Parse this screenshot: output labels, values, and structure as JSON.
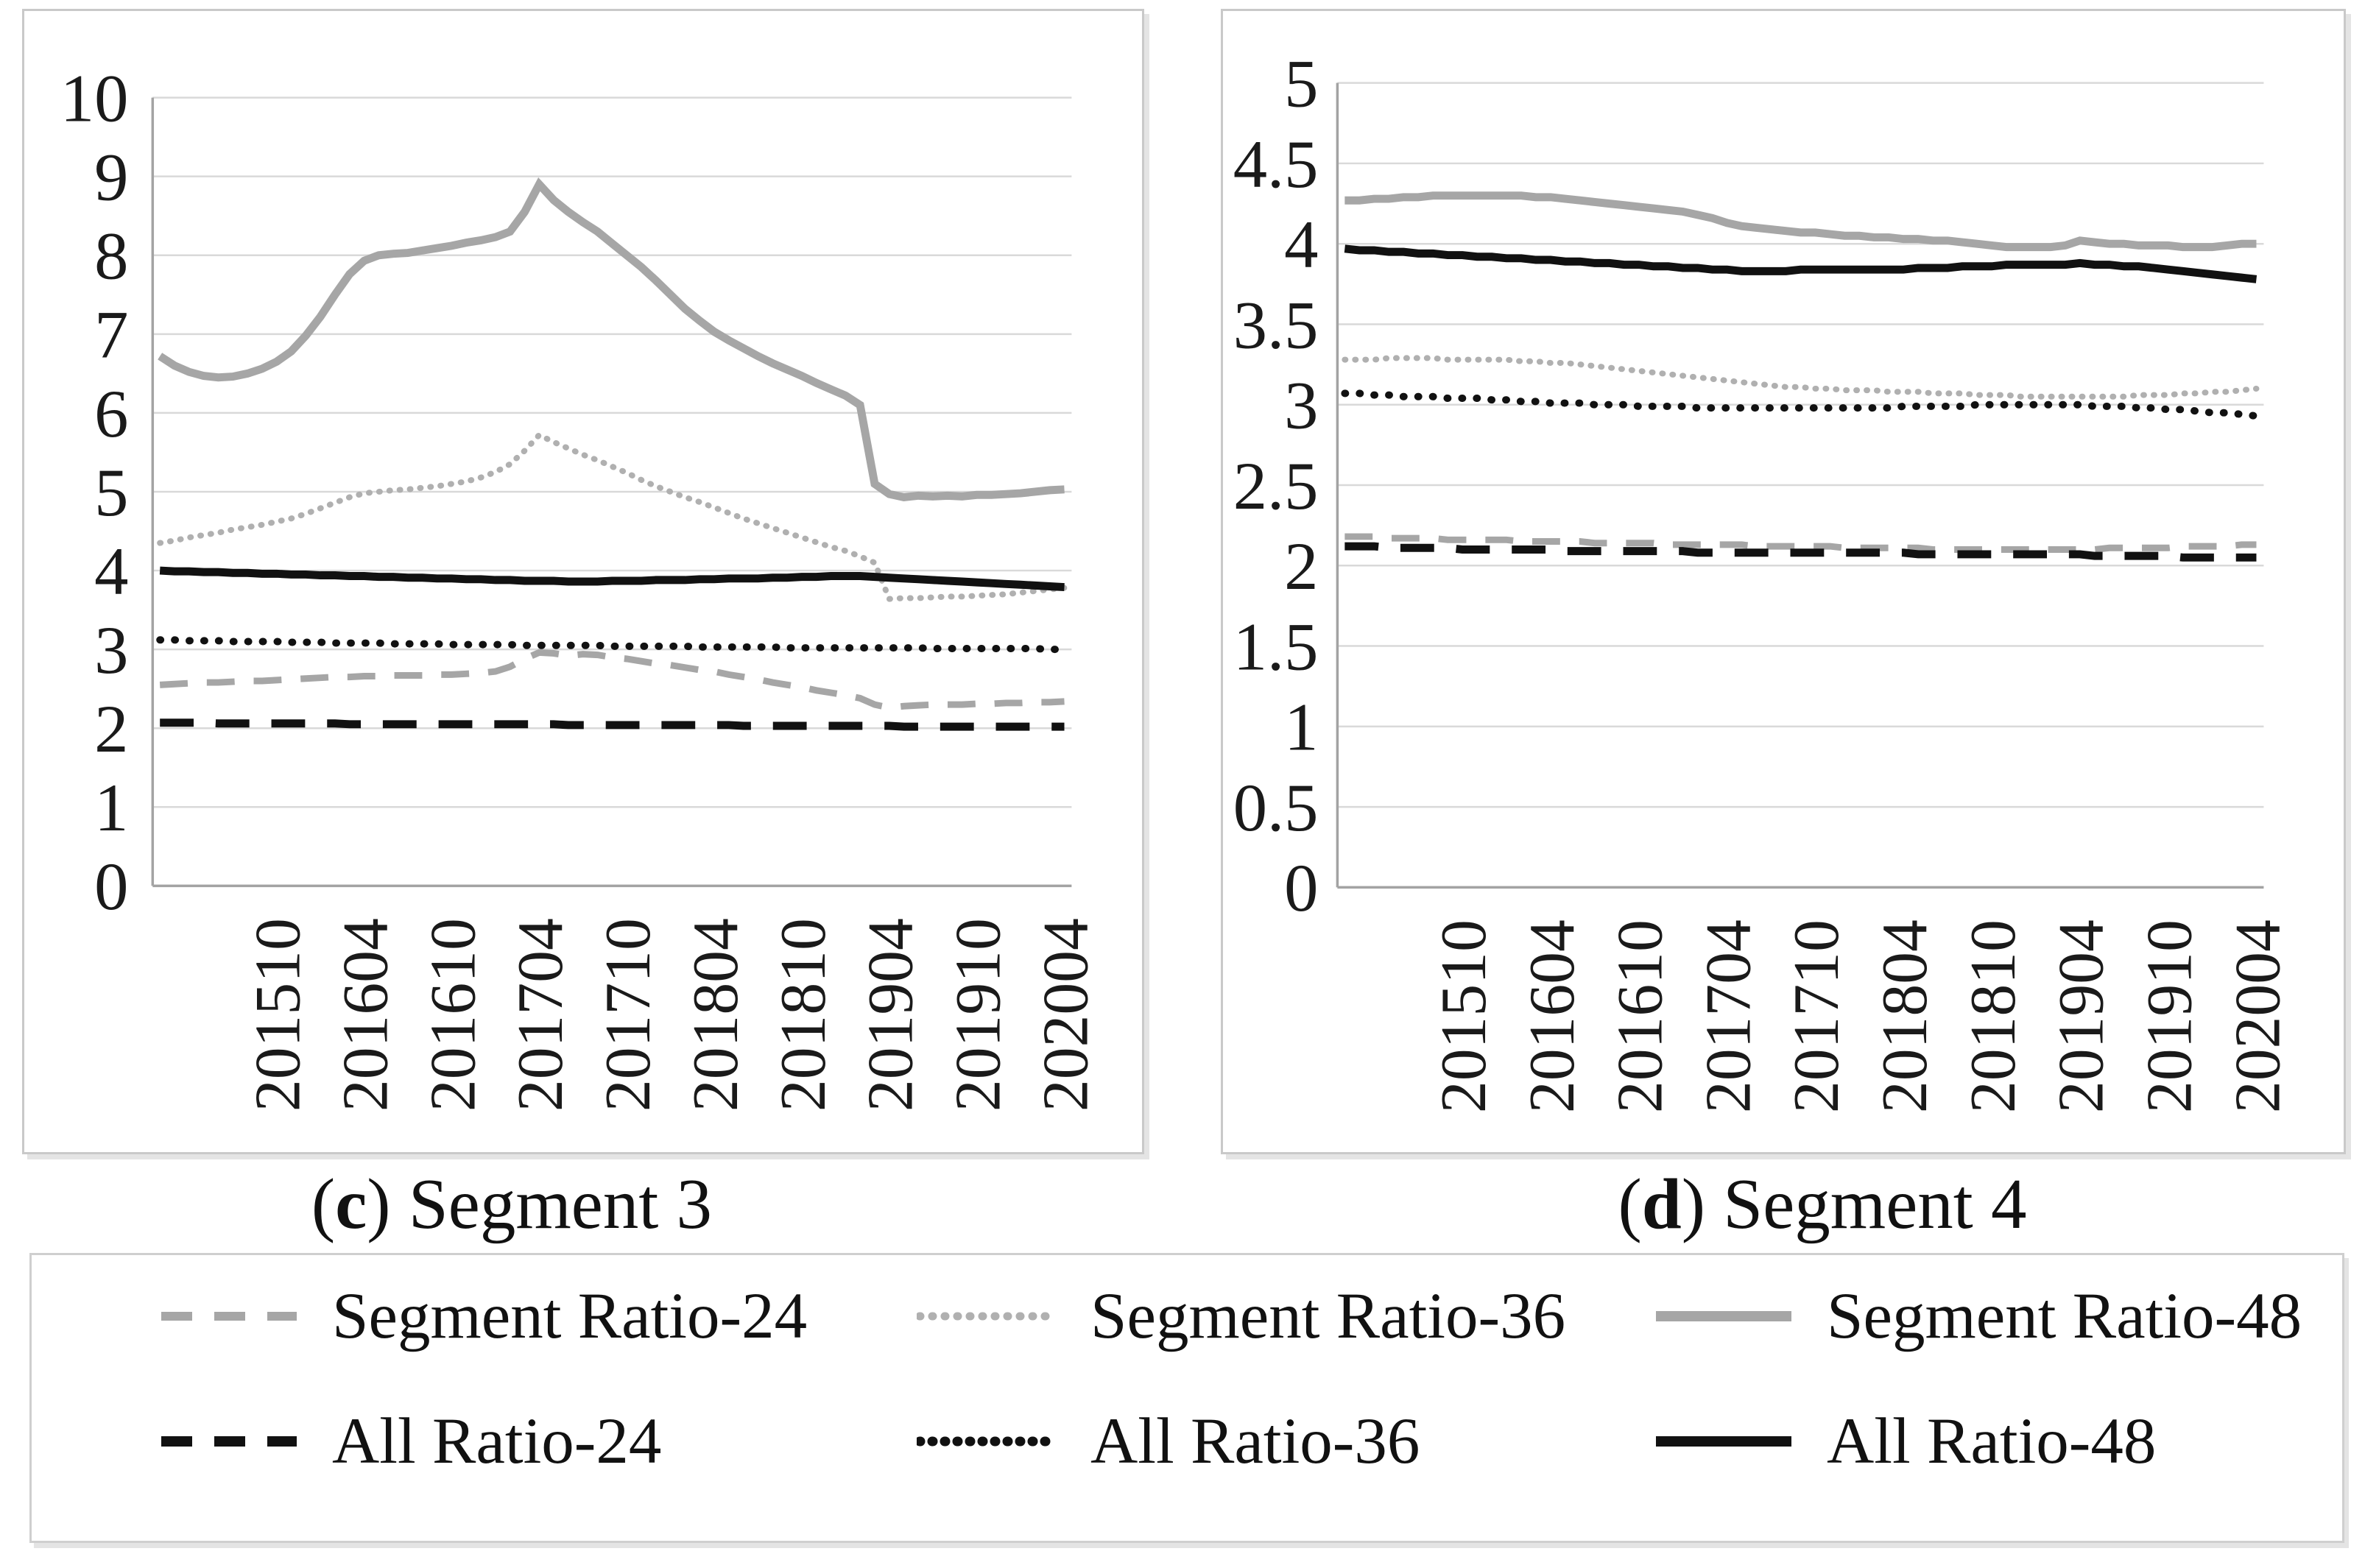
{
  "figure": {
    "panels": [
      {
        "id": "c",
        "caption_open": "(",
        "caption_letter": "c",
        "caption_rest": ") Segment 3"
      },
      {
        "id": "d",
        "caption_open": "(",
        "caption_letter": "d",
        "caption_rest": ") Segment 4"
      }
    ]
  },
  "legend": {
    "position": "bottom-shared",
    "items": [
      {
        "id": "seg24",
        "label": "Segment Ratio-24"
      },
      {
        "id": "seg36",
        "label": "Segment Ratio-36"
      },
      {
        "id": "seg48",
        "label": "Segment Ratio-48"
      },
      {
        "id": "all24",
        "label": "All Ratio-24"
      },
      {
        "id": "all36",
        "label": "All Ratio-36"
      },
      {
        "id": "all48",
        "label": "All Ratio-48"
      }
    ]
  },
  "colors": {
    "segment_gray": "#a6a6a6",
    "segment_dotted_gray": "#b0b0b0",
    "black": "#111111",
    "gridline": "#d9d9d9",
    "axis_line": "#a3a3a3",
    "text": "#1a1a1a",
    "panel_border": "#c9c9c9"
  },
  "chart_data": [
    {
      "type": "line",
      "panel": "c",
      "title": "Segment 3",
      "xlabel": "",
      "ylabel": "",
      "ylim": [
        0,
        10
      ],
      "ytick_step": 1,
      "ytick_labels": [
        "0",
        "1",
        "2",
        "3",
        "4",
        "5",
        "6",
        "7",
        "8",
        "9",
        "10"
      ],
      "grid": true,
      "x_months": [
        "201502",
        "201503",
        "201504",
        "201505",
        "201506",
        "201507",
        "201508",
        "201509",
        "201510",
        "201511",
        "201512",
        "201601",
        "201602",
        "201603",
        "201604",
        "201605",
        "201606",
        "201607",
        "201608",
        "201609",
        "201610",
        "201611",
        "201612",
        "201701",
        "201702",
        "201703",
        "201704",
        "201705",
        "201706",
        "201707",
        "201708",
        "201709",
        "201710",
        "201711",
        "201712",
        "201801",
        "201802",
        "201803",
        "201804",
        "201805",
        "201806",
        "201807",
        "201808",
        "201809",
        "201810",
        "201811",
        "201812",
        "201901",
        "201902",
        "201903",
        "201904",
        "201905",
        "201906",
        "201907",
        "201908",
        "201909",
        "201910",
        "201911",
        "201912",
        "202001",
        "202002",
        "202003",
        "202004"
      ],
      "x_tick_indices": [
        8,
        14,
        20,
        26,
        32,
        38,
        44,
        50,
        56,
        62
      ],
      "x_tick_labels": [
        "201510",
        "201604",
        "201610",
        "201704",
        "201710",
        "201804",
        "201810",
        "201904",
        "201910",
        "202004"
      ],
      "series": [
        {
          "id": "seg24",
          "name": "Segment Ratio-24",
          "values": [
            2.55,
            2.56,
            2.57,
            2.58,
            2.58,
            2.59,
            2.6,
            2.6,
            2.61,
            2.62,
            2.63,
            2.64,
            2.65,
            2.65,
            2.66,
            2.66,
            2.67,
            2.67,
            2.67,
            2.68,
            2.68,
            2.69,
            2.7,
            2.72,
            2.78,
            2.88,
            2.96,
            2.95,
            2.92,
            2.94,
            2.93,
            2.9,
            2.88,
            2.85,
            2.82,
            2.8,
            2.77,
            2.74,
            2.72,
            2.68,
            2.65,
            2.62,
            2.58,
            2.55,
            2.52,
            2.48,
            2.45,
            2.42,
            2.38,
            2.3,
            2.26,
            2.28,
            2.29,
            2.3,
            2.3,
            2.3,
            2.31,
            2.31,
            2.32,
            2.32,
            2.33,
            2.33,
            2.34
          ]
        },
        {
          "id": "seg36",
          "name": "Segment Ratio-36",
          "values": [
            4.35,
            4.38,
            4.42,
            4.45,
            4.48,
            4.52,
            4.55,
            4.58,
            4.62,
            4.66,
            4.72,
            4.79,
            4.86,
            4.93,
            4.98,
            5.0,
            5.02,
            5.03,
            5.05,
            5.07,
            5.1,
            5.13,
            5.18,
            5.25,
            5.35,
            5.52,
            5.72,
            5.63,
            5.55,
            5.47,
            5.4,
            5.32,
            5.24,
            5.15,
            5.07,
            5.0,
            4.93,
            4.87,
            4.8,
            4.73,
            4.66,
            4.6,
            4.54,
            4.48,
            4.42,
            4.36,
            4.3,
            4.25,
            4.18,
            4.1,
            3.64,
            3.65,
            3.65,
            3.66,
            3.67,
            3.67,
            3.68,
            3.69,
            3.7,
            3.72,
            3.74,
            3.76,
            3.78
          ]
        },
        {
          "id": "seg48",
          "name": "Segment Ratio-48",
          "values": [
            6.72,
            6.6,
            6.52,
            6.47,
            6.45,
            6.46,
            6.5,
            6.56,
            6.65,
            6.78,
            6.98,
            7.22,
            7.5,
            7.76,
            7.93,
            8.0,
            8.02,
            8.03,
            8.06,
            8.09,
            8.12,
            8.16,
            8.19,
            8.23,
            8.3,
            8.55,
            8.9,
            8.7,
            8.55,
            8.42,
            8.3,
            8.15,
            8.0,
            7.85,
            7.68,
            7.5,
            7.32,
            7.17,
            7.03,
            6.92,
            6.82,
            6.72,
            6.63,
            6.55,
            6.47,
            6.38,
            6.3,
            6.22,
            6.1,
            5.1,
            4.97,
            4.93,
            4.95,
            4.94,
            4.95,
            4.94,
            4.96,
            4.96,
            4.97,
            4.98,
            5.0,
            5.02,
            5.03
          ]
        },
        {
          "id": "all24",
          "name": "All Ratio-24",
          "values": [
            2.07,
            2.07,
            2.07,
            2.07,
            2.06,
            2.06,
            2.06,
            2.06,
            2.06,
            2.06,
            2.06,
            2.06,
            2.06,
            2.05,
            2.05,
            2.05,
            2.05,
            2.05,
            2.05,
            2.05,
            2.05,
            2.05,
            2.05,
            2.05,
            2.05,
            2.05,
            2.05,
            2.05,
            2.04,
            2.04,
            2.04,
            2.04,
            2.04,
            2.04,
            2.04,
            2.04,
            2.04,
            2.04,
            2.04,
            2.04,
            2.03,
            2.03,
            2.03,
            2.03,
            2.03,
            2.03,
            2.03,
            2.03,
            2.03,
            2.03,
            2.03,
            2.02,
            2.02,
            2.02,
            2.02,
            2.02,
            2.02,
            2.02,
            2.02,
            2.02,
            2.02,
            2.02,
            2.02
          ]
        },
        {
          "id": "all36",
          "name": "All Ratio-36",
          "values": [
            3.12,
            3.12,
            3.11,
            3.11,
            3.11,
            3.1,
            3.1,
            3.1,
            3.1,
            3.09,
            3.09,
            3.09,
            3.08,
            3.08,
            3.08,
            3.08,
            3.07,
            3.07,
            3.07,
            3.07,
            3.06,
            3.06,
            3.06,
            3.06,
            3.06,
            3.05,
            3.05,
            3.05,
            3.05,
            3.05,
            3.05,
            3.04,
            3.04,
            3.04,
            3.04,
            3.04,
            3.04,
            3.03,
            3.03,
            3.03,
            3.03,
            3.03,
            3.03,
            3.02,
            3.02,
            3.02,
            3.02,
            3.02,
            3.02,
            3.02,
            3.02,
            3.02,
            3.02,
            3.01,
            3.01,
            3.01,
            3.01,
            3.01,
            3.01,
            3.01,
            3.01,
            3.0,
            3.0
          ]
        },
        {
          "id": "all48",
          "name": "All Ratio-48",
          "values": [
            4.0,
            3.99,
            3.99,
            3.98,
            3.98,
            3.97,
            3.97,
            3.96,
            3.96,
            3.95,
            3.95,
            3.94,
            3.94,
            3.93,
            3.93,
            3.92,
            3.92,
            3.91,
            3.91,
            3.9,
            3.9,
            3.89,
            3.89,
            3.88,
            3.88,
            3.87,
            3.87,
            3.87,
            3.86,
            3.86,
            3.86,
            3.87,
            3.87,
            3.87,
            3.88,
            3.88,
            3.88,
            3.89,
            3.89,
            3.9,
            3.9,
            3.9,
            3.91,
            3.91,
            3.92,
            3.92,
            3.93,
            3.93,
            3.93,
            3.92,
            3.91,
            3.9,
            3.89,
            3.88,
            3.87,
            3.86,
            3.85,
            3.84,
            3.83,
            3.82,
            3.81,
            3.8,
            3.79
          ]
        }
      ]
    },
    {
      "type": "line",
      "panel": "d",
      "title": "Segment 4",
      "xlabel": "",
      "ylabel": "",
      "ylim": [
        0,
        5
      ],
      "ytick_step": 0.5,
      "ytick_labels": [
        "0",
        "0.5",
        "1",
        "1.5",
        "2",
        "2.5",
        "3",
        "3.5",
        "4",
        "4.5",
        "5"
      ],
      "grid": true,
      "x_months": [
        "201502",
        "201503",
        "201504",
        "201505",
        "201506",
        "201507",
        "201508",
        "201509",
        "201510",
        "201511",
        "201512",
        "201601",
        "201602",
        "201603",
        "201604",
        "201605",
        "201606",
        "201607",
        "201608",
        "201609",
        "201610",
        "201611",
        "201612",
        "201701",
        "201702",
        "201703",
        "201704",
        "201705",
        "201706",
        "201707",
        "201708",
        "201709",
        "201710",
        "201711",
        "201712",
        "201801",
        "201802",
        "201803",
        "201804",
        "201805",
        "201806",
        "201807",
        "201808",
        "201809",
        "201810",
        "201811",
        "201812",
        "201901",
        "201902",
        "201903",
        "201904",
        "201905",
        "201906",
        "201907",
        "201908",
        "201909",
        "201910",
        "201911",
        "201912",
        "202001",
        "202002",
        "202003",
        "202004"
      ],
      "x_tick_indices": [
        8,
        14,
        20,
        26,
        32,
        38,
        44,
        50,
        56,
        62
      ],
      "x_tick_labels": [
        "201510",
        "201604",
        "201610",
        "201704",
        "201710",
        "201804",
        "201810",
        "201904",
        "201910",
        "202004"
      ],
      "series": [
        {
          "id": "seg24",
          "name": "Segment Ratio-24",
          "values": [
            2.18,
            2.18,
            2.18,
            2.17,
            2.17,
            2.17,
            2.17,
            2.16,
            2.16,
            2.16,
            2.16,
            2.16,
            2.15,
            2.15,
            2.15,
            2.15,
            2.15,
            2.14,
            2.14,
            2.14,
            2.14,
            2.14,
            2.13,
            2.13,
            2.13,
            2.13,
            2.13,
            2.13,
            2.12,
            2.12,
            2.12,
            2.12,
            2.12,
            2.12,
            2.11,
            2.11,
            2.11,
            2.11,
            2.11,
            2.11,
            2.1,
            2.1,
            2.1,
            2.1,
            2.1,
            2.1,
            2.1,
            2.1,
            2.1,
            2.1,
            2.1,
            2.1,
            2.11,
            2.11,
            2.11,
            2.11,
            2.11,
            2.12,
            2.12,
            2.12,
            2.12,
            2.13,
            2.13
          ]
        },
        {
          "id": "seg36",
          "name": "Segment Ratio-36",
          "values": [
            3.28,
            3.28,
            3.28,
            3.29,
            3.29,
            3.29,
            3.29,
            3.28,
            3.28,
            3.28,
            3.28,
            3.28,
            3.27,
            3.27,
            3.26,
            3.26,
            3.25,
            3.24,
            3.23,
            3.22,
            3.21,
            3.2,
            3.19,
            3.18,
            3.17,
            3.16,
            3.15,
            3.14,
            3.13,
            3.12,
            3.11,
            3.11,
            3.1,
            3.1,
            3.09,
            3.09,
            3.09,
            3.08,
            3.08,
            3.08,
            3.07,
            3.07,
            3.07,
            3.06,
            3.06,
            3.06,
            3.05,
            3.05,
            3.05,
            3.05,
            3.05,
            3.05,
            3.05,
            3.05,
            3.06,
            3.06,
            3.06,
            3.07,
            3.07,
            3.08,
            3.08,
            3.09,
            3.1
          ]
        },
        {
          "id": "seg48",
          "name": "Segment Ratio-48",
          "values": [
            4.27,
            4.27,
            4.28,
            4.28,
            4.29,
            4.29,
            4.3,
            4.3,
            4.3,
            4.3,
            4.3,
            4.3,
            4.3,
            4.29,
            4.29,
            4.28,
            4.27,
            4.26,
            4.25,
            4.24,
            4.23,
            4.22,
            4.21,
            4.2,
            4.18,
            4.16,
            4.13,
            4.11,
            4.1,
            4.09,
            4.08,
            4.07,
            4.07,
            4.06,
            4.05,
            4.05,
            4.04,
            4.04,
            4.03,
            4.03,
            4.02,
            4.02,
            4.01,
            4.0,
            3.99,
            3.98,
            3.98,
            3.98,
            3.98,
            3.99,
            4.02,
            4.01,
            4.0,
            4.0,
            3.99,
            3.99,
            3.99,
            3.98,
            3.98,
            3.98,
            3.99,
            4.0,
            4.0
          ]
        },
        {
          "id": "all24",
          "name": "All Ratio-24",
          "values": [
            2.12,
            2.12,
            2.12,
            2.11,
            2.11,
            2.11,
            2.11,
            2.11,
            2.1,
            2.1,
            2.1,
            2.1,
            2.1,
            2.1,
            2.1,
            2.09,
            2.09,
            2.09,
            2.09,
            2.09,
            2.09,
            2.09,
            2.09,
            2.09,
            2.08,
            2.08,
            2.08,
            2.08,
            2.08,
            2.08,
            2.08,
            2.08,
            2.08,
            2.08,
            2.08,
            2.08,
            2.08,
            2.08,
            2.08,
            2.07,
            2.07,
            2.07,
            2.07,
            2.07,
            2.07,
            2.07,
            2.07,
            2.07,
            2.07,
            2.07,
            2.07,
            2.06,
            2.06,
            2.06,
            2.06,
            2.06,
            2.06,
            2.05,
            2.05,
            2.05,
            2.05,
            2.05,
            2.05
          ]
        },
        {
          "id": "all36",
          "name": "All Ratio-36",
          "values": [
            3.07,
            3.07,
            3.06,
            3.06,
            3.05,
            3.05,
            3.05,
            3.04,
            3.04,
            3.04,
            3.03,
            3.03,
            3.02,
            3.02,
            3.01,
            3.01,
            3.01,
            3.0,
            3.0,
            3.0,
            2.99,
            2.99,
            2.99,
            2.99,
            2.98,
            2.98,
            2.98,
            2.98,
            2.98,
            2.98,
            2.98,
            2.98,
            2.98,
            2.98,
            2.98,
            2.98,
            2.98,
            2.98,
            2.99,
            2.99,
            2.99,
            2.99,
            2.99,
            3.0,
            3.0,
            3.0,
            3.0,
            3.0,
            3.0,
            3.0,
            3.0,
            2.99,
            2.99,
            2.99,
            2.98,
            2.98,
            2.97,
            2.97,
            2.96,
            2.95,
            2.95,
            2.94,
            2.93
          ]
        },
        {
          "id": "all48",
          "name": "All Ratio-48",
          "values": [
            3.97,
            3.96,
            3.96,
            3.95,
            3.95,
            3.94,
            3.94,
            3.93,
            3.93,
            3.92,
            3.92,
            3.91,
            3.91,
            3.9,
            3.9,
            3.89,
            3.89,
            3.88,
            3.88,
            3.87,
            3.87,
            3.86,
            3.86,
            3.85,
            3.85,
            3.84,
            3.84,
            3.83,
            3.83,
            3.83,
            3.83,
            3.84,
            3.84,
            3.84,
            3.84,
            3.84,
            3.84,
            3.84,
            3.84,
            3.85,
            3.85,
            3.85,
            3.86,
            3.86,
            3.86,
            3.87,
            3.87,
            3.87,
            3.87,
            3.87,
            3.88,
            3.87,
            3.87,
            3.86,
            3.86,
            3.85,
            3.84,
            3.83,
            3.82,
            3.81,
            3.8,
            3.79,
            3.78
          ]
        }
      ]
    }
  ]
}
